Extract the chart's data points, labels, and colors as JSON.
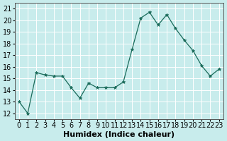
{
  "x": [
    0,
    1,
    2,
    3,
    4,
    5,
    6,
    7,
    8,
    9,
    10,
    11,
    12,
    13,
    14,
    15,
    16,
    17,
    18,
    19,
    20,
    21,
    22,
    23
  ],
  "y": [
    13,
    12,
    15.5,
    15.3,
    15.2,
    15.2,
    14.2,
    13.3,
    14.6,
    14.2,
    14.2,
    14.2,
    14.7,
    17.5,
    20.2,
    20.7,
    19.6,
    20.5,
    19.3,
    18.3,
    17.4,
    16.1,
    15.2,
    15.8
  ],
  "xlim": [
    -0.5,
    23.5
  ],
  "ylim": [
    11.5,
    21.5
  ],
  "yticks": [
    12,
    13,
    14,
    15,
    16,
    17,
    18,
    19,
    20,
    21
  ],
  "xticks": [
    0,
    1,
    2,
    3,
    4,
    5,
    6,
    7,
    8,
    9,
    10,
    11,
    12,
    13,
    14,
    15,
    16,
    17,
    18,
    19,
    20,
    21,
    22,
    23
  ],
  "xlabel": "Humidex (Indice chaleur)",
  "line_color": "#1a6b5a",
  "marker": "*",
  "marker_color": "#1a6b5a",
  "bg_color": "#c8ecec",
  "grid_color": "#ffffff",
  "axis_color": "#555555",
  "label_fontsize": 7,
  "xlabel_fontsize": 8
}
